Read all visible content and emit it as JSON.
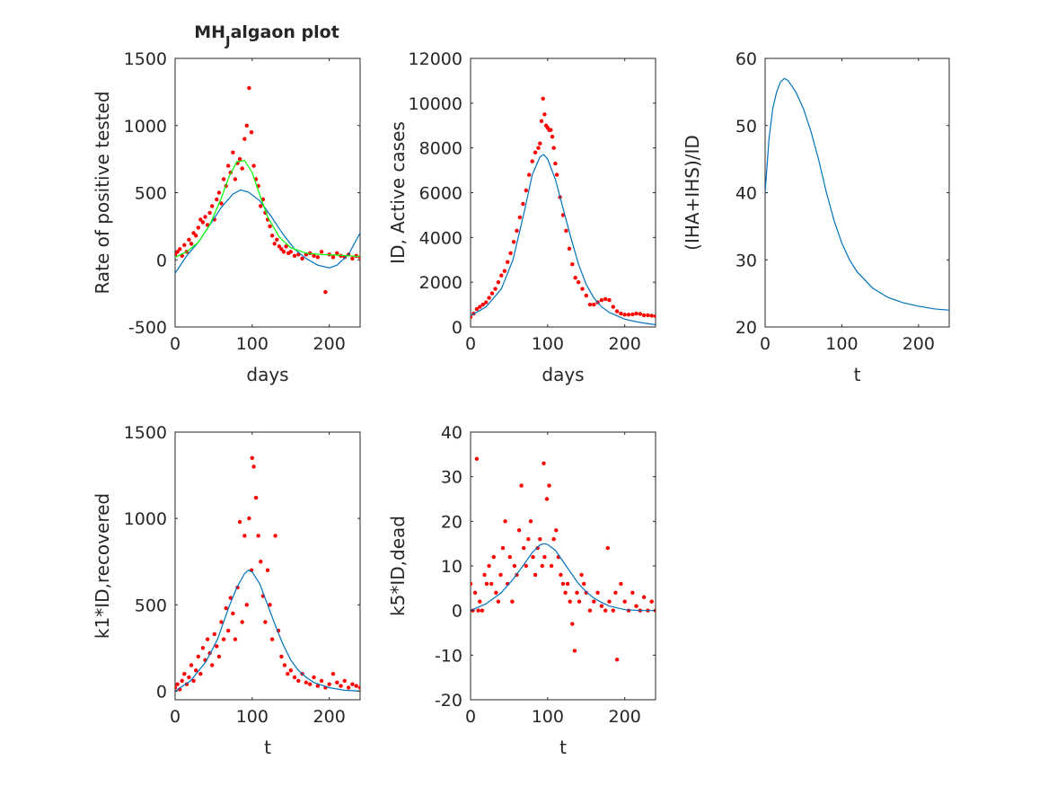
{
  "chart_data": [
    {
      "type": "scatter",
      "title_main": "MH",
      "title_sub": "J",
      "title_rest": "algaon plot",
      "xlabel": "days",
      "ylabel": "Rate of positive tested",
      "xlim": [
        0,
        240
      ],
      "ylim": [
        -500,
        1500
      ],
      "xticks": [
        0,
        100,
        200
      ],
      "yticks": [
        -500,
        0,
        500,
        1000,
        1500
      ],
      "xtick_labels": [
        "0",
        "100",
        "200"
      ],
      "ytick_labels": [
        "-500",
        "0",
        "500",
        "1000",
        "1500"
      ],
      "colors": {
        "points": "#ff0000",
        "fit": "#0072bd",
        "fit2": "#00ff00"
      },
      "series": [
        {
          "style": "points",
          "x": [
            0,
            3,
            6,
            9,
            12,
            15,
            18,
            21,
            24,
            27,
            30,
            33,
            36,
            39,
            42,
            45,
            48,
            51,
            54,
            57,
            60,
            63,
            66,
            69,
            72,
            75,
            78,
            81,
            84,
            87,
            90,
            93,
            96,
            99,
            102,
            105,
            108,
            111,
            114,
            117,
            120,
            123,
            126,
            129,
            132,
            135,
            138,
            141,
            144,
            147,
            150,
            155,
            160,
            165,
            170,
            175,
            180,
            185,
            190,
            195,
            200,
            205,
            210,
            215,
            220,
            225,
            230,
            235,
            240
          ],
          "y": [
            40,
            60,
            80,
            30,
            110,
            60,
            150,
            120,
            200,
            180,
            240,
            300,
            280,
            320,
            260,
            350,
            400,
            300,
            450,
            500,
            420,
            600,
            550,
            700,
            650,
            800,
            600,
            720,
            750,
            680,
            900,
            1000,
            1280,
            950,
            700,
            600,
            550,
            400,
            450,
            350,
            300,
            250,
            180,
            120,
            150,
            100,
            80,
            60,
            100,
            50,
            60,
            30,
            40,
            10,
            40,
            50,
            30,
            20,
            60,
            -240,
            40,
            20,
            50,
            30,
            20,
            40,
            10,
            30,
            20
          ]
        },
        {
          "style": "line",
          "x": [
            0,
            15,
            30,
            45,
            60,
            75,
            85,
            95,
            110,
            125,
            140,
            155,
            170,
            185,
            200,
            210,
            225,
            240
          ],
          "y": [
            -100,
            30,
            130,
            260,
            390,
            490,
            520,
            505,
            440,
            320,
            190,
            80,
            10,
            -40,
            -60,
            -40,
            40,
            200
          ]
        },
        {
          "style": "line2",
          "x": [
            0,
            15,
            30,
            45,
            60,
            70,
            80,
            90,
            100,
            110,
            120,
            135,
            150,
            170,
            190,
            210,
            225,
            240
          ],
          "y": [
            20,
            60,
            130,
            260,
            460,
            620,
            730,
            740,
            650,
            480,
            320,
            170,
            90,
            50,
            40,
            35,
            30,
            25
          ]
        }
      ]
    },
    {
      "type": "scatter",
      "xlabel": "days",
      "ylabel": "ID, Active cases",
      "xlim": [
        0,
        240
      ],
      "ylim": [
        0,
        12000
      ],
      "xticks": [
        0,
        100,
        200
      ],
      "yticks": [
        0,
        2000,
        4000,
        6000,
        8000,
        10000,
        12000
      ],
      "xtick_labels": [
        "0",
        "100",
        "200"
      ],
      "ytick_labels": [
        "0",
        "2000",
        "4000",
        "6000",
        "8000",
        "10000",
        "12000"
      ],
      "colors": {
        "points": "#ff0000",
        "fit": "#0072bd"
      },
      "series": [
        {
          "style": "points",
          "x": [
            0,
            4,
            8,
            12,
            16,
            20,
            24,
            28,
            32,
            36,
            40,
            44,
            48,
            52,
            56,
            60,
            64,
            68,
            72,
            76,
            80,
            84,
            88,
            90,
            92,
            94,
            96,
            98,
            100,
            102,
            104,
            106,
            108,
            110,
            112,
            116,
            120,
            124,
            128,
            132,
            136,
            140,
            145,
            150,
            155,
            160,
            165,
            170,
            175,
            180,
            185,
            190,
            195,
            200,
            205,
            210,
            215,
            220,
            225,
            230,
            235,
            240
          ],
          "y": [
            450,
            600,
            800,
            900,
            1000,
            1100,
            1300,
            1500,
            1700,
            2000,
            2300,
            2500,
            2900,
            3300,
            3800,
            4300,
            4900,
            5500,
            6100,
            6800,
            7400,
            7800,
            8000,
            8200,
            9200,
            10200,
            9500,
            9000,
            8900,
            8800,
            8800,
            8500,
            8000,
            7300,
            6800,
            5800,
            5000,
            4300,
            3500,
            2800,
            2200,
            2000,
            1700,
            1400,
            1000,
            1000,
            1100,
            1200,
            1250,
            1200,
            900,
            700,
            600,
            550,
            550,
            560,
            600,
            580,
            520,
            520,
            500,
            480
          ]
        },
        {
          "style": "line",
          "x": [
            0,
            20,
            40,
            55,
            70,
            80,
            90,
            95,
            100,
            110,
            120,
            130,
            140,
            150,
            160,
            170,
            180,
            200,
            220,
            240
          ],
          "y": [
            500,
            900,
            1700,
            3000,
            5200,
            6800,
            7600,
            7700,
            7500,
            6600,
            5300,
            4000,
            2800,
            1900,
            1300,
            900,
            650,
            350,
            200,
            100
          ]
        }
      ]
    },
    {
      "type": "line",
      "xlabel": "t",
      "ylabel": "(IHA+IHS)/ID",
      "xlim": [
        0,
        240
      ],
      "ylim": [
        20,
        60
      ],
      "xticks": [
        0,
        100,
        200
      ],
      "yticks": [
        20,
        30,
        40,
        50,
        60
      ],
      "xtick_labels": [
        "0",
        "100",
        "200"
      ],
      "ytick_labels": [
        "20",
        "30",
        "40",
        "50",
        "60"
      ],
      "colors": {
        "fit": "#0072bd"
      },
      "series": [
        {
          "style": "line",
          "x": [
            0,
            5,
            10,
            15,
            20,
            25,
            30,
            40,
            50,
            60,
            70,
            80,
            90,
            100,
            110,
            120,
            140,
            160,
            180,
            200,
            220,
            240
          ],
          "y": [
            40,
            48,
            52.5,
            55,
            56.5,
            57,
            56.7,
            55,
            52.5,
            49,
            44.8,
            40,
            35.8,
            32.5,
            30,
            28.2,
            25.8,
            24.4,
            23.6,
            23.1,
            22.7,
            22.5
          ]
        }
      ]
    },
    {
      "type": "scatter",
      "xlabel": "t",
      "ylabel": "k1*ID,recovered",
      "xlim": [
        0,
        240
      ],
      "ylim": [
        -50,
        1500
      ],
      "xticks": [
        0,
        100,
        200
      ],
      "yticks": [
        0,
        500,
        1000,
        1500
      ],
      "xtick_labels": [
        "0",
        "100",
        "200"
      ],
      "ytick_labels": [
        "0",
        "500",
        "1000",
        "1500"
      ],
      "colors": {
        "points": "#ff0000",
        "fit": "#0072bd"
      },
      "series": [
        {
          "style": "points",
          "x": [
            0,
            3,
            6,
            9,
            12,
            15,
            18,
            21,
            24,
            27,
            30,
            33,
            36,
            39,
            42,
            45,
            48,
            51,
            54,
            57,
            60,
            63,
            66,
            69,
            72,
            75,
            78,
            81,
            84,
            87,
            90,
            93,
            96,
            99,
            100,
            102,
            105,
            108,
            111,
            114,
            117,
            120,
            123,
            126,
            130,
            134,
            138,
            142,
            146,
            150,
            155,
            160,
            165,
            170,
            175,
            180,
            185,
            190,
            195,
            200,
            205,
            210,
            215,
            220,
            225,
            230,
            235,
            240
          ],
          "y": [
            20,
            40,
            10,
            60,
            100,
            40,
            80,
            150,
            60,
            120,
            200,
            100,
            250,
            180,
            300,
            220,
            150,
            330,
            260,
            200,
            400,
            300,
            480,
            350,
            540,
            450,
            300,
            600,
            980,
            400,
            900,
            500,
            1000,
            700,
            1350,
            1300,
            1120,
            900,
            750,
            550,
            400,
            700,
            500,
            300,
            900,
            350,
            200,
            150,
            100,
            120,
            80,
            60,
            100,
            50,
            40,
            80,
            30,
            60,
            20,
            40,
            100,
            50,
            30,
            60,
            20,
            40,
            30,
            20
          ]
        },
        {
          "style": "line",
          "x": [
            0,
            20,
            40,
            55,
            70,
            80,
            90,
            95,
            100,
            110,
            120,
            130,
            140,
            150,
            160,
            170,
            180,
            200,
            220,
            240
          ],
          "y": [
            0,
            60,
            170,
            300,
            490,
            600,
            680,
            700,
            690,
            620,
            500,
            380,
            270,
            180,
            120,
            80,
            50,
            20,
            5,
            0
          ]
        }
      ]
    },
    {
      "type": "scatter",
      "xlabel": "t",
      "ylabel": "k5*ID,dead",
      "xlim": [
        0,
        240
      ],
      "ylim": [
        -20,
        40
      ],
      "xticks": [
        0,
        100,
        200
      ],
      "yticks": [
        -20,
        -10,
        0,
        10,
        20,
        30,
        40
      ],
      "xtick_labels": [
        "0",
        "100",
        "200"
      ],
      "ytick_labels": [
        "-20",
        "-10",
        "0",
        "10",
        "20",
        "30",
        "40"
      ],
      "colors": {
        "points": "#ff0000",
        "fit": "#0072bd"
      },
      "series": [
        {
          "style": "points",
          "x": [
            0,
            3,
            6,
            8,
            10,
            12,
            15,
            18,
            21,
            24,
            27,
            30,
            33,
            36,
            39,
            42,
            45,
            48,
            51,
            54,
            57,
            60,
            63,
            66,
            69,
            72,
            75,
            78,
            81,
            84,
            87,
            90,
            93,
            95,
            96,
            99,
            102,
            105,
            108,
            111,
            114,
            117,
            120,
            123,
            126,
            129,
            132,
            135,
            138,
            141,
            144,
            147,
            150,
            155,
            160,
            165,
            170,
            175,
            178,
            180,
            185,
            188,
            190,
            195,
            200,
            205,
            210,
            215,
            220,
            225,
            230,
            235,
            240
          ],
          "y": [
            6,
            0,
            4,
            34,
            0,
            2,
            0,
            8,
            6,
            10,
            6,
            12,
            4,
            2,
            8,
            14,
            20,
            6,
            12,
            2,
            10,
            8,
            18,
            28,
            14,
            10,
            16,
            20,
            12,
            8,
            14,
            16,
            10,
            33,
            12,
            25,
            28,
            10,
            16,
            18,
            12,
            8,
            6,
            4,
            6,
            2,
            -3,
            -9,
            4,
            2,
            8,
            6,
            4,
            0,
            2,
            4,
            1,
            0,
            14,
            2,
            0,
            4,
            -11,
            6,
            2,
            0,
            4,
            1,
            0,
            3,
            0,
            2,
            0
          ]
        },
        {
          "style": "line",
          "x": [
            0,
            20,
            40,
            55,
            70,
            80,
            90,
            95,
            100,
            110,
            120,
            130,
            140,
            150,
            160,
            170,
            180,
            200,
            220,
            240
          ],
          "y": [
            0,
            1.5,
            4,
            7,
            10.5,
            13,
            14.7,
            15,
            14.8,
            13.5,
            11,
            8.5,
            6,
            4.2,
            2.8,
            1.8,
            1,
            0.2,
            0,
            0
          ]
        }
      ]
    }
  ]
}
